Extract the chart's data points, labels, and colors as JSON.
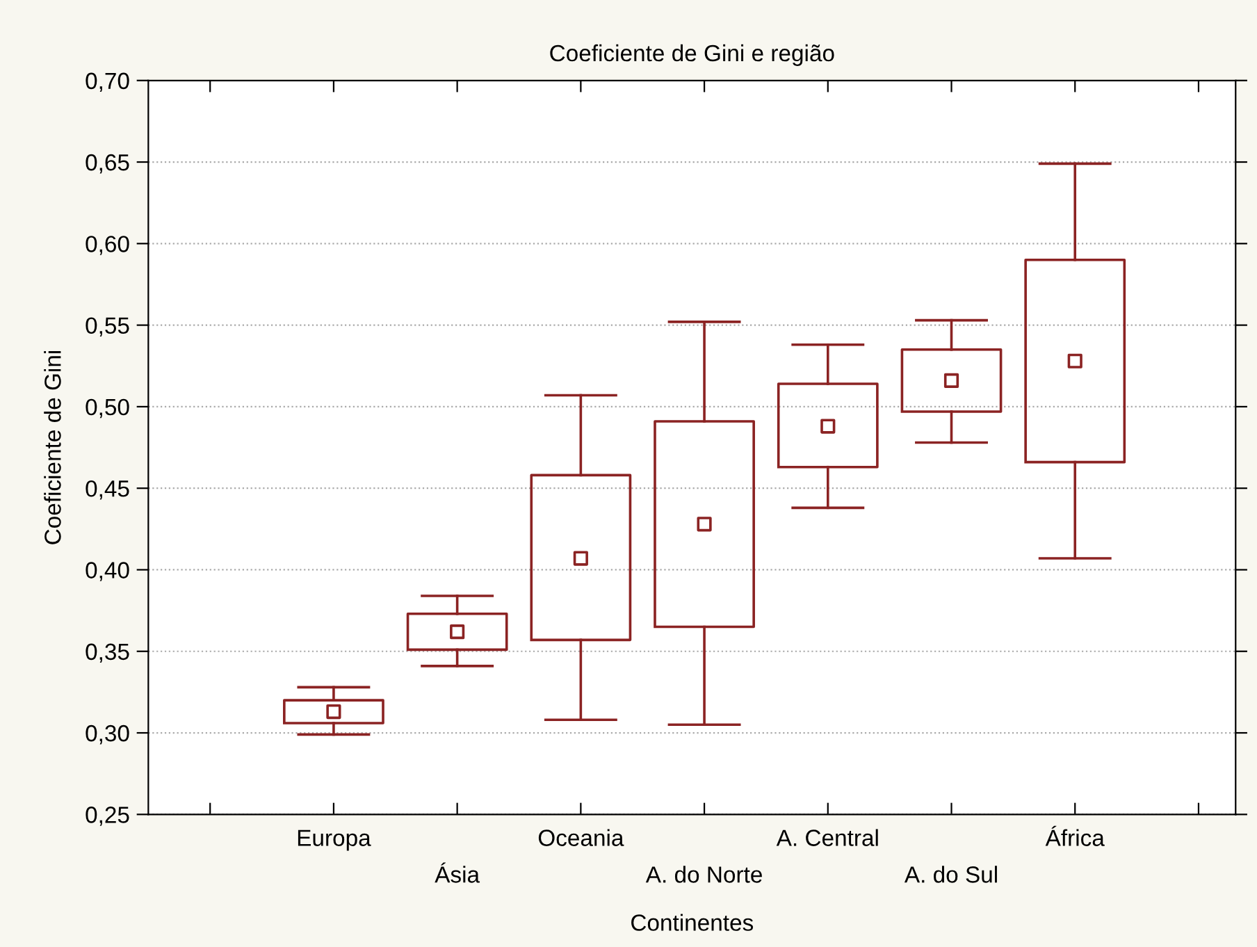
{
  "chart_data": {
    "type": "box",
    "title": "Coeficiente de Gini e região",
    "xlabel": "Continentes",
    "ylabel": "Coeficiente de Gini",
    "categories": [
      "Europa",
      "Ásia",
      "Oceania",
      "A. do Norte",
      "A. Central",
      "A. do Sul",
      "África"
    ],
    "series": [
      {
        "color": "#8b2323",
        "boxes": [
          {
            "low": 0.299,
            "q1": 0.306,
            "median": 0.313,
            "q3": 0.32,
            "high": 0.328
          },
          {
            "low": 0.341,
            "q1": 0.351,
            "median": 0.362,
            "q3": 0.373,
            "high": 0.384
          },
          {
            "low": 0.308,
            "q1": 0.357,
            "median": 0.407,
            "q3": 0.458,
            "high": 0.507
          },
          {
            "low": 0.305,
            "q1": 0.365,
            "median": 0.428,
            "q3": 0.491,
            "high": 0.552
          },
          {
            "low": 0.438,
            "q1": 0.463,
            "median": 0.488,
            "q3": 0.514,
            "high": 0.538
          },
          {
            "low": 0.478,
            "q1": 0.497,
            "median": 0.516,
            "q3": 0.535,
            "high": 0.553
          },
          {
            "low": 0.407,
            "q1": 0.466,
            "median": 0.528,
            "q3": 0.59,
            "high": 0.649
          }
        ]
      }
    ],
    "ylim": [
      0.25,
      0.7
    ],
    "yticks": [
      {
        "value": 0.25,
        "label": "0,25"
      },
      {
        "value": 0.3,
        "label": "0,30"
      },
      {
        "value": 0.35,
        "label": "0,35"
      },
      {
        "value": 0.4,
        "label": "0,40"
      },
      {
        "value": 0.45,
        "label": "0,45"
      },
      {
        "value": 0.5,
        "label": "0,50"
      },
      {
        "value": 0.55,
        "label": "0,55"
      },
      {
        "value": 0.6,
        "label": "0,60"
      },
      {
        "value": 0.65,
        "label": "0,65"
      },
      {
        "value": 0.7,
        "label": "0,70"
      }
    ],
    "grid": "y",
    "marker": "square"
  }
}
